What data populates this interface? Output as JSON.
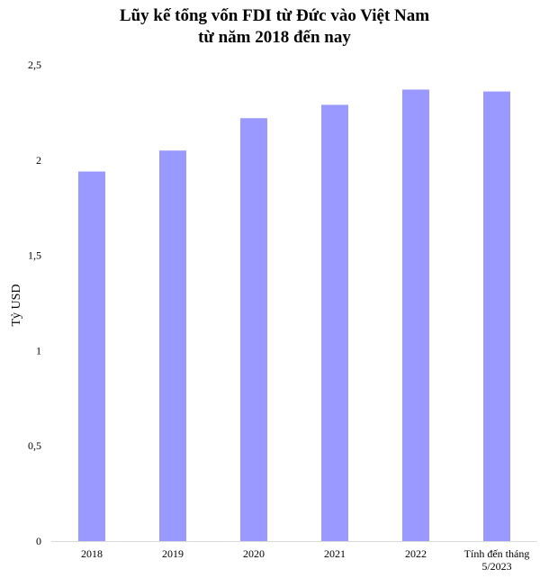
{
  "chart_data": {
    "type": "bar",
    "title": [
      "Lũy kế tổng vốn FDI từ Đức vào Việt Nam",
      "từ năm 2018 đến nay"
    ],
    "xlabel": "",
    "ylabel": "Tỷ USD",
    "categories": [
      [
        "2018"
      ],
      [
        "2019"
      ],
      [
        "2020"
      ],
      [
        "2021"
      ],
      [
        "2022"
      ],
      [
        "Tính đến tháng",
        "5/2023"
      ]
    ],
    "values": [
      1.94,
      2.05,
      2.22,
      2.29,
      2.37,
      2.36
    ],
    "ylim": [
      0,
      2.5
    ],
    "yticks": [
      0,
      0.5,
      1,
      1.5,
      2,
      2.5
    ],
    "ytick_labels": [
      "0",
      "0,5",
      "1",
      "1,5",
      "2",
      "2,5"
    ],
    "bar_color": "#9999ff",
    "grid": false,
    "legend": "none"
  }
}
